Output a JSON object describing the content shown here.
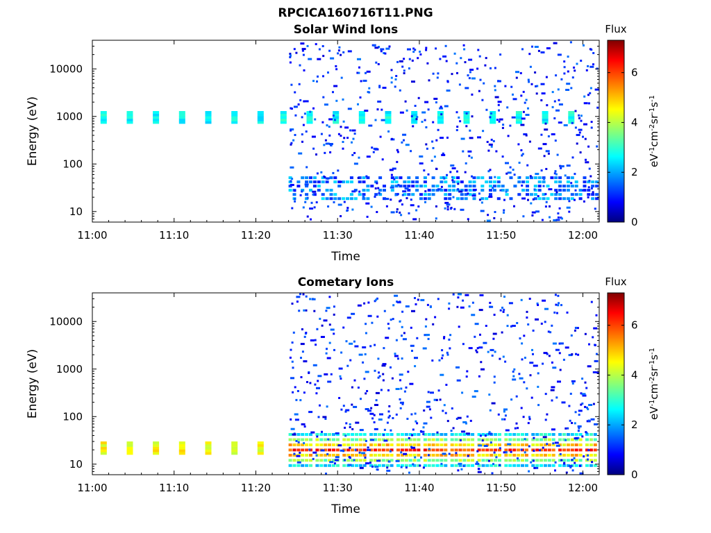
{
  "figure_title": "RPCICA160716T11.PNG",
  "chart_data": [
    {
      "type": "heatmap",
      "title": "Solar Wind Ions",
      "xlabel": "Time",
      "ylabel": "Energy (eV)",
      "x_range": [
        "11:00",
        "12:02"
      ],
      "y_range": [
        6,
        40000
      ],
      "y_scale": "log",
      "x_ticks": [
        "11:00",
        "11:10",
        "11:20",
        "11:30",
        "11:40",
        "11:50",
        "12:00"
      ],
      "y_ticks": [
        "10",
        "100",
        "1000",
        "10000"
      ],
      "colorbar": {
        "title": "Flux",
        "label": "eV-1cm-2sr-1s-1",
        "range": [
          0,
          7.3
        ],
        "ticks": [
          "0",
          "2",
          "4",
          "6"
        ],
        "colormap": "jet"
      },
      "features": [
        {
          "time_range": [
            "11:01",
            "11:23"
          ],
          "energy_range": [
            800,
            1300
          ],
          "flux": 2.7,
          "kind": "periodic-band"
        },
        {
          "time_range": [
            "11:23",
            "12:02"
          ],
          "energy_range": [
            800,
            1300
          ],
          "flux": 2.8,
          "kind": "periodic-band"
        },
        {
          "time_range": [
            "11:24",
            "12:02"
          ],
          "energy_range": [
            20,
            55
          ],
          "flux": 1.5,
          "kind": "band"
        },
        {
          "time_range": [
            "11:24",
            "12:02"
          ],
          "energy_range": [
            6,
            40000
          ],
          "flux": 0.6,
          "kind": "sparse-noise"
        }
      ]
    },
    {
      "type": "heatmap",
      "title": "Cometary Ions",
      "xlabel": "Time",
      "ylabel": "Energy (eV)",
      "x_range": [
        "11:00",
        "12:02"
      ],
      "y_range": [
        6,
        40000
      ],
      "y_scale": "log",
      "x_ticks": [
        "11:00",
        "11:10",
        "11:20",
        "11:30",
        "11:40",
        "11:50",
        "12:00"
      ],
      "y_ticks": [
        "10",
        "100",
        "1000",
        "10000"
      ],
      "colorbar": {
        "title": "Flux",
        "label": "eV-1cm-2sr-1s-1",
        "range": [
          0,
          7.3
        ],
        "ticks": [
          "0",
          "2",
          "4",
          "6"
        ],
        "colormap": "jet"
      },
      "features": [
        {
          "time_range": [
            "11:01",
            "11:23"
          ],
          "energy_range": [
            18,
            30
          ],
          "flux": 4.5,
          "kind": "periodic-band"
        },
        {
          "time_range": [
            "11:24",
            "12:02"
          ],
          "energy_range": [
            10,
            45
          ],
          "flux": 5.5,
          "kind": "periodic-blobs"
        },
        {
          "time_range": [
            "11:24",
            "12:02"
          ],
          "energy_range": [
            6,
            40000
          ],
          "flux": 0.6,
          "kind": "sparse-noise"
        }
      ]
    }
  ]
}
